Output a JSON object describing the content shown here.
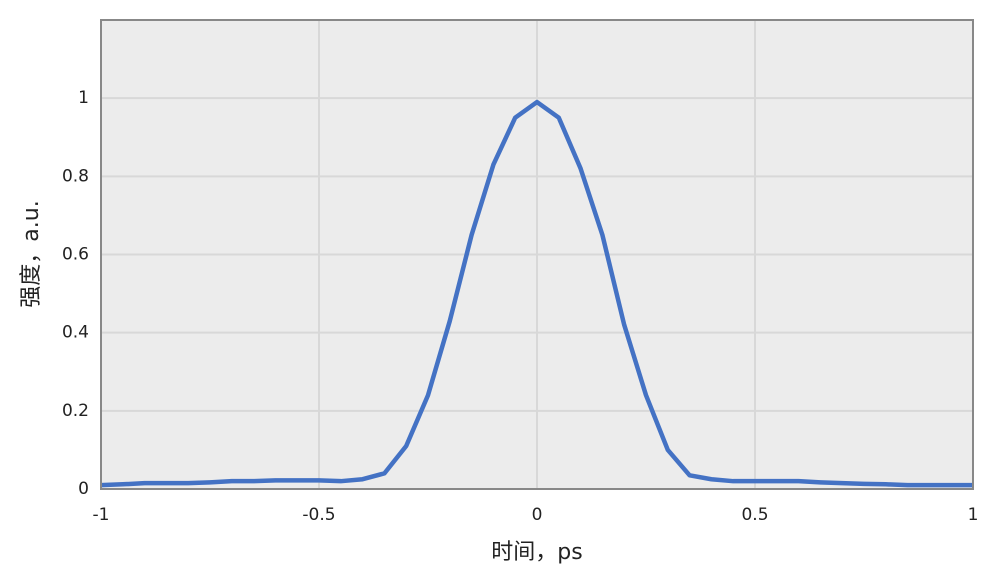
{
  "chart_data": {
    "type": "line",
    "x_label": "时间，ps",
    "y_label": "强度，a.u.",
    "x": [
      -1,
      -0.95,
      -0.9,
      -0.85,
      -0.8,
      -0.75,
      -0.7,
      -0.65,
      -0.6,
      -0.55,
      -0.5,
      -0.45,
      -0.4,
      -0.35,
      -0.3,
      -0.25,
      -0.2,
      -0.15,
      -0.1,
      -0.05,
      0,
      0.05,
      0.1,
      0.15,
      0.2,
      0.25,
      0.3,
      0.35,
      0.4,
      0.45,
      0.5,
      0.55,
      0.6,
      0.65,
      0.7,
      0.75,
      0.8,
      0.85,
      0.9,
      0.95,
      1
    ],
    "series": [
      {
        "color": "#4472c4",
        "values": [
          0.01,
          0.012,
          0.015,
          0.015,
          0.015,
          0.017,
          0.02,
          0.02,
          0.022,
          0.022,
          0.022,
          0.02,
          0.025,
          0.04,
          0.11,
          0.24,
          0.43,
          0.65,
          0.83,
          0.95,
          0.99,
          0.95,
          0.82,
          0.65,
          0.42,
          0.24,
          0.1,
          0.035,
          0.025,
          0.02,
          0.02,
          0.02,
          0.02,
          0.017,
          0.015,
          0.013,
          0.012,
          0.01,
          0.01,
          0.01,
          0.01
        ]
      }
    ],
    "xlim": [
      -1,
      1
    ],
    "xticks": [
      -1,
      -0.5,
      0,
      0.5,
      1
    ],
    "ylim": [
      0,
      1.2
    ],
    "yticks": [
      0,
      0.2,
      0.4,
      0.6,
      0.8,
      1
    ],
    "grid": true
  }
}
